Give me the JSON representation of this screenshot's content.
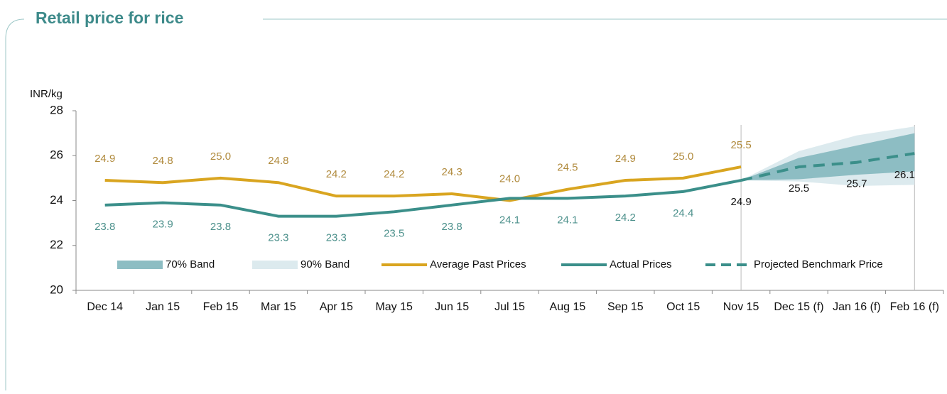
{
  "chart_data": {
    "type": "line",
    "title": "Retail price for rice",
    "ylabel": "INR/kg",
    "categories": [
      "Dec 14",
      "Jan 15",
      "Feb 15",
      "Mar 15",
      "Apr 15",
      "May 15",
      "Jun 15",
      "Jul 15",
      "Aug 15",
      "Sep 15",
      "Oct 15",
      "Nov 15",
      "Dec 15 (f)",
      "Jan 16 (f)",
      "Feb 16 (f)"
    ],
    "ylim": [
      20,
      28
    ],
    "yticks": [
      20,
      22,
      24,
      26,
      28
    ],
    "series": [
      {
        "name": "70% Band",
        "kind": "band",
        "color": "#8dbdc3",
        "values": [
          null,
          null,
          null,
          null,
          null,
          null,
          null,
          null,
          null,
          null,
          null,
          24.9,
          25.9,
          26.45,
          27.0
        ],
        "lower": [
          null,
          null,
          null,
          null,
          null,
          null,
          null,
          null,
          null,
          null,
          null,
          24.9,
          24.95,
          25.15,
          25.3
        ]
      },
      {
        "name": "90% Band",
        "kind": "band",
        "color": "#dceaee",
        "values": [
          null,
          null,
          null,
          null,
          null,
          null,
          null,
          null,
          null,
          null,
          null,
          24.9,
          26.2,
          26.9,
          27.3
        ],
        "lower": [
          null,
          null,
          null,
          null,
          null,
          null,
          null,
          null,
          null,
          null,
          null,
          24.9,
          24.85,
          24.65,
          24.7
        ]
      },
      {
        "name": "Average Past Prices",
        "kind": "line",
        "color": "#d9a520",
        "label_color": "#b08a3c",
        "label_side": "above",
        "values": [
          24.9,
          24.8,
          25.0,
          24.8,
          24.2,
          24.2,
          24.3,
          24.0,
          24.5,
          24.9,
          25.0,
          25.5,
          null,
          null,
          null
        ],
        "value_labels": [
          "24.9",
          "24.8",
          "25.0",
          "24.8",
          "24.2",
          "24.2",
          "24.3",
          "24.0",
          "24.5",
          "24.9",
          "25.0",
          "25.5",
          null,
          null,
          null
        ]
      },
      {
        "name": "Actual Prices",
        "kind": "line",
        "color": "#3b8f8a",
        "label_color": "#4d918c",
        "label_side": "below",
        "values": [
          23.8,
          23.9,
          23.8,
          23.3,
          23.3,
          23.5,
          23.8,
          24.1,
          24.1,
          24.2,
          24.4,
          24.9,
          null,
          null,
          null
        ],
        "value_labels": [
          "23.8",
          "23.9",
          "23.8",
          "23.3",
          "23.3",
          "23.5",
          "23.8",
          "24.1",
          "24.1",
          "24.2",
          "24.4",
          null,
          null,
          null,
          null
        ]
      },
      {
        "name": "Projected Benchmark Price",
        "kind": "line",
        "dashed": true,
        "color": "#3b8f8a",
        "label_color": "#111111",
        "label_side": "below",
        "values": [
          null,
          null,
          null,
          null,
          null,
          null,
          null,
          null,
          null,
          null,
          null,
          24.9,
          25.5,
          25.7,
          26.1
        ],
        "value_labels": [
          null,
          null,
          null,
          null,
          null,
          null,
          null,
          null,
          null,
          null,
          null,
          "24.9",
          "25.5",
          "25.7",
          "26.1"
        ]
      }
    ]
  }
}
